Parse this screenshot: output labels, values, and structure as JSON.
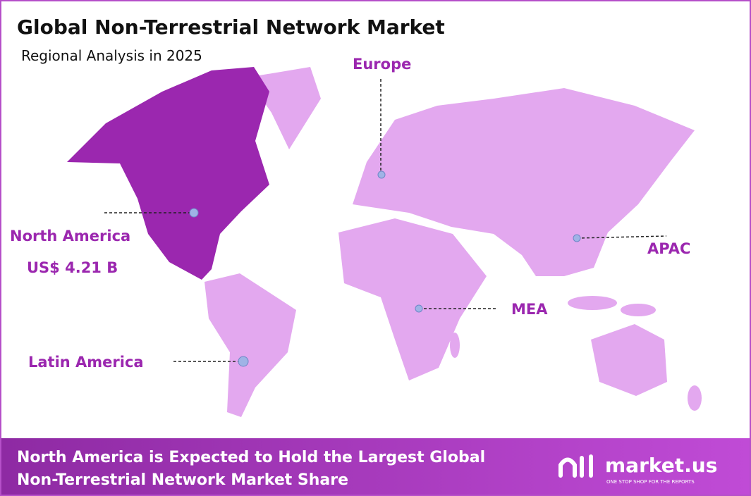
{
  "header": {
    "title": "Global Non-Terrestrial Network Market",
    "subtitle": "Regional Analysis in 2025"
  },
  "regions": [
    {
      "label": "North America",
      "value": "US$ 4.21 B"
    },
    {
      "label": "Europe"
    },
    {
      "label": "APAC"
    },
    {
      "label": "MEA"
    },
    {
      "label": "Latin America"
    }
  ],
  "footer": {
    "lines": [
      "North America is Expected to Hold the Largest Global",
      "Non-Terrestrial Network Market Share"
    ]
  },
  "logo": {
    "name": "market.us",
    "tagline": "ONE STOP SHOP FOR THE REPORTS"
  }
}
